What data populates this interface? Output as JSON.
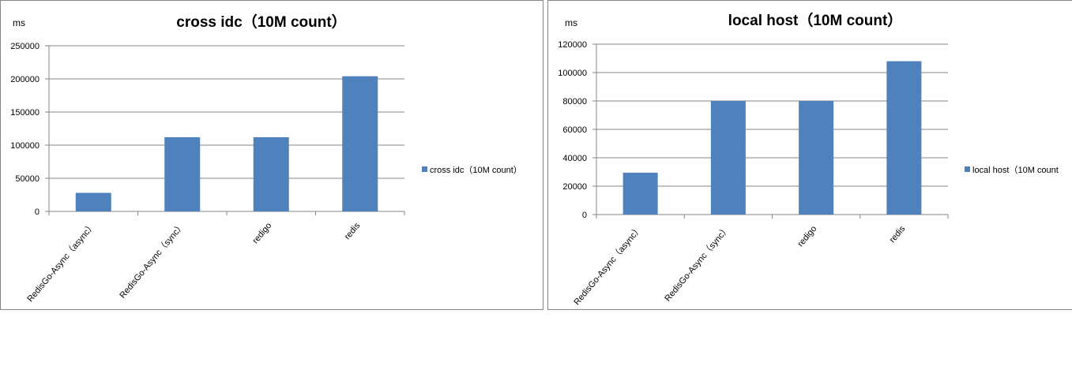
{
  "chart_data": [
    {
      "type": "bar",
      "title": "cross idc（10M count）",
      "unit_label": "ms",
      "categories": [
        "RedisGo-Async（async）",
        "RedisGo-Async（sync）",
        "redigo",
        "redis"
      ],
      "series": [
        {
          "name": "cross idc（10M count）",
          "values": [
            28000,
            112000,
            112000,
            204000
          ]
        }
      ],
      "yticks": [
        "0",
        "50000",
        "100000",
        "150000",
        "200000",
        "250000"
      ],
      "ylim": [
        0,
        250000
      ],
      "grid": true,
      "legend": "right",
      "bar_color": "#4f81bd"
    },
    {
      "type": "bar",
      "title": "local host（10M count）",
      "unit_label": "ms",
      "categories": [
        "RedisGo-Async（async）",
        "RedisGo-Async（sync）",
        "redigo",
        "redis"
      ],
      "series": [
        {
          "name": "local host（10M count",
          "values": [
            29500,
            80000,
            80000,
            108000
          ]
        }
      ],
      "yticks": [
        "0",
        "20000",
        "40000",
        "60000",
        "80000",
        "100000",
        "120000"
      ],
      "ylim": [
        0,
        120000
      ],
      "grid": true,
      "legend": "right",
      "bar_color": "#4f81bd"
    }
  ]
}
